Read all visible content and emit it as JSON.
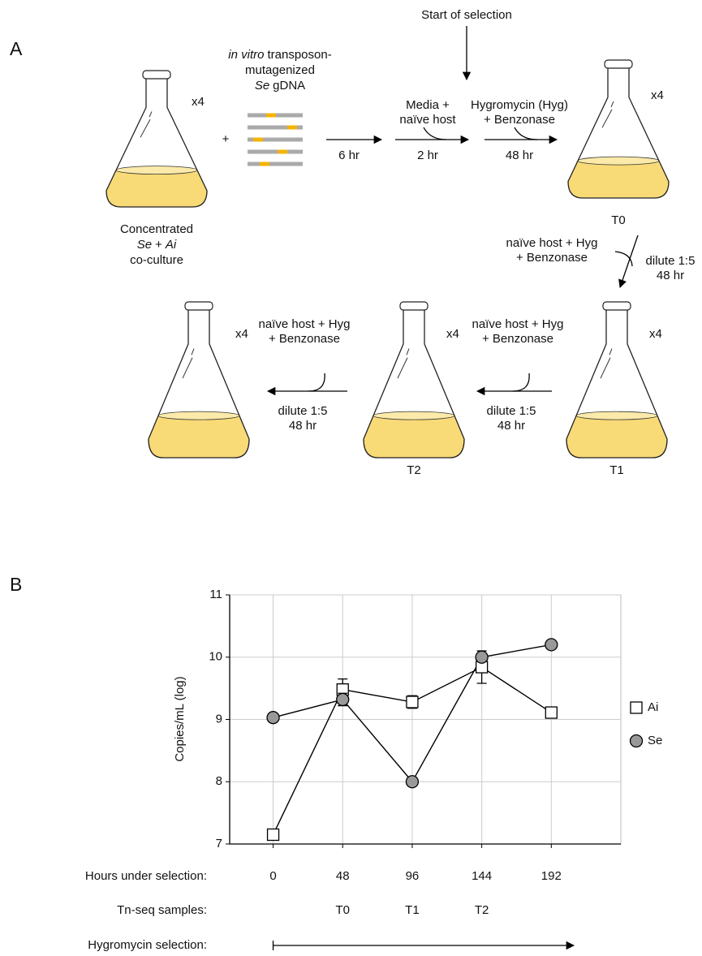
{
  "panel_a": {
    "label": "A",
    "culture": {
      "replicates": "x4",
      "line1": "Concentrated",
      "organism1": "Se",
      "plus": "+",
      "organism2": "Ai",
      "line3": "co-culture"
    },
    "plus": "+",
    "gdna": {
      "italic": "in vitro",
      "line1": "transposon-",
      "line2": "mutagenized",
      "organism": "Se",
      "line3": "gDNA"
    },
    "step1": {
      "time": "6 hr"
    },
    "start": "Start of selection",
    "step2": {
      "line1": "Media +",
      "line2": "naïve host",
      "time": "2 hr"
    },
    "step3": {
      "line1": "Hygromycin (Hyg)",
      "line2": "+ Benzonase",
      "time": "48 hr"
    },
    "t0": {
      "replicates": "x4",
      "label": "T0"
    },
    "step4": {
      "line1": "naïve host + Hyg",
      "line2": "+ Benzonase",
      "line3": "dilute 1:5",
      "time": "48 hr"
    },
    "t1": {
      "replicates": "x4",
      "label": "T1"
    },
    "step5": {
      "line1": "naïve host + Hyg",
      "line2": "+ Benzonase",
      "line3": "dilute 1:5",
      "time": "48 hr"
    },
    "t2": {
      "replicates": "x4",
      "label": "T2"
    },
    "step6": {
      "line1": "naïve host + Hyg",
      "line2": "+ Benzonase",
      "line3": "dilute 1:5",
      "time": "48 hr"
    },
    "final": {
      "replicates": "x4"
    }
  },
  "chart_data": {
    "type": "line",
    "panel_label": "B",
    "y_label": "Copies/mL (log)",
    "x_label": "Hours under selection:",
    "x": [
      0,
      48,
      96,
      144,
      192
    ],
    "xlim": [
      -30,
      240
    ],
    "xticks": [
      0,
      48,
      96,
      144,
      192
    ],
    "ylim": [
      7,
      11
    ],
    "yticks": [
      7,
      8,
      9,
      10,
      11
    ],
    "grid": true,
    "series": [
      {
        "name": "Ai",
        "color": "#ffffff",
        "marker": "square",
        "values": [
          7.15,
          9.48,
          9.28,
          9.84,
          9.11
        ],
        "errors": [
          0.03,
          0.17,
          0.1,
          0.26,
          0.03
        ]
      },
      {
        "name": "Se",
        "color": "#999999",
        "marker": "circle",
        "values": [
          9.03,
          9.32,
          8.0,
          10.0,
          10.2
        ],
        "errors": [
          0.03,
          0.1,
          0.03,
          0.03,
          0.04
        ]
      }
    ],
    "tn_label": "Tn-seq samples:",
    "tn_samples": [
      null,
      "T0",
      "T1",
      "T2",
      null
    ],
    "hyg_label": "Hygromycin selection:"
  }
}
